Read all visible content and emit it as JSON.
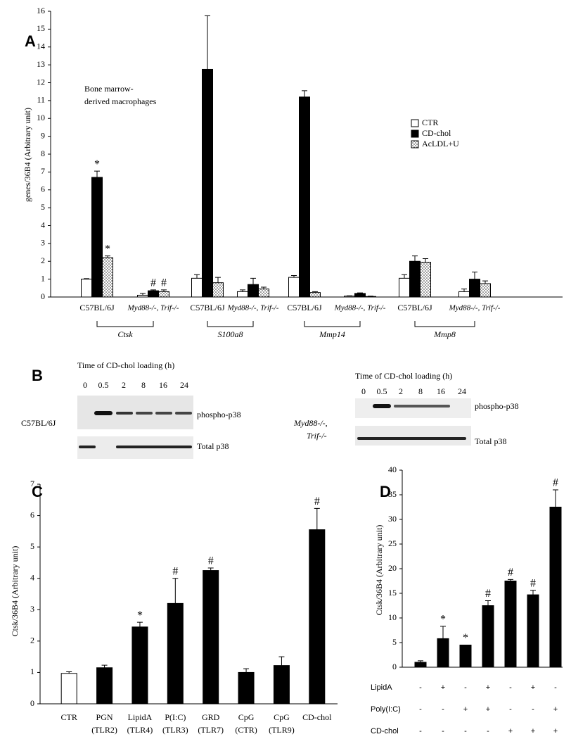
{
  "chart_data": [
    {
      "type": "bar",
      "panel_label": "A",
      "y_label": "genes/36B4 (Arbitrary unit)",
      "annotation": [
        "Bone marrow-",
        "derived macrophages"
      ],
      "categories": [
        "C57BL/6J",
        "Myd88-/-, Trif-/-",
        "C57BL/6J",
        "Myd88-/-, Trif-/-",
        "C57BL/6J",
        "Myd88-/-, Trif-/-",
        "C57BL/6J",
        "Myd88-/-, Trif-/-"
      ],
      "groups": [
        "Ctsk",
        "S100a8",
        "Mmp14",
        "Mmp8"
      ],
      "series": [
        {
          "name": "CTR",
          "color": "#ffffff",
          "values": [
            1.0,
            0.1,
            1.05,
            0.3,
            1.1,
            0.05,
            1.05,
            0.3
          ],
          "errors": [
            0.03,
            0.1,
            0.2,
            0.1,
            0.1,
            0.02,
            0.2,
            0.15
          ],
          "markers": [
            null,
            null,
            null,
            null,
            null,
            null,
            null,
            null
          ]
        },
        {
          "name": "CD-chol",
          "color": "#000000",
          "values": [
            6.7,
            0.35,
            12.75,
            0.7,
            11.2,
            0.2,
            2.0,
            1.0
          ],
          "errors": [
            0.35,
            0.05,
            3.0,
            0.35,
            0.35,
            0.03,
            0.3,
            0.4
          ],
          "markers": [
            "*",
            "#",
            null,
            null,
            null,
            null,
            null,
            null
          ]
        },
        {
          "name": "AcLDL+U",
          "color": "dots",
          "values": [
            2.2,
            0.3,
            0.8,
            0.45,
            0.25,
            0.03,
            1.95,
            0.75
          ],
          "errors": [
            0.1,
            0.1,
            0.3,
            0.1,
            0.05,
            0.02,
            0.2,
            0.15
          ],
          "markers": [
            "*",
            "#",
            null,
            null,
            null,
            null,
            null,
            null
          ]
        }
      ],
      "ylim": [
        0,
        16
      ],
      "yticks": [
        0,
        1,
        2,
        3,
        4,
        5,
        6,
        7,
        8,
        9,
        10,
        11,
        12,
        13,
        14,
        15,
        16
      ]
    },
    {
      "type": "bar",
      "panel_label": "C",
      "y_label": "Ctsk/36B4 (Arbitrary unit)",
      "categories": [
        "CTR",
        "PGN",
        "LipidA",
        "P(I:C)",
        "GRD",
        "CpG",
        "CpG",
        "CD-chol"
      ],
      "category_notes": [
        null,
        "(TLR2)",
        "(TLR4)",
        "(TLR3)",
        "(TLR7)",
        "(CTR)",
        "(TLR9)",
        null
      ],
      "colors": [
        "#ffffff",
        "#000000",
        "#000000",
        "#000000",
        "#000000",
        "#000000",
        "#000000",
        "#000000"
      ],
      "values": [
        0.97,
        1.15,
        2.45,
        3.2,
        4.25,
        1.0,
        1.22,
        5.55
      ],
      "errors": [
        0.05,
        0.08,
        0.15,
        0.8,
        0.08,
        0.12,
        0.28,
        0.68
      ],
      "markers": [
        null,
        null,
        "*",
        "#",
        "#",
        null,
        null,
        "#"
      ],
      "ylim": [
        0,
        7
      ],
      "yticks": [
        0,
        1,
        2,
        3,
        4,
        5,
        6,
        7
      ]
    },
    {
      "type": "bar",
      "panel_label": "D",
      "y_label": "Ctsk/36B4 (Arbitrary unit)",
      "color": "#000000",
      "values": [
        1.0,
        5.8,
        4.5,
        12.5,
        17.5,
        14.7,
        32.5
      ],
      "errors": [
        0.3,
        2.5,
        0.0,
        1.0,
        0.3,
        0.9,
        3.5
      ],
      "markers": [
        null,
        "*",
        "*",
        "#",
        "#",
        "#",
        "#"
      ],
      "treatments": [
        {
          "name": "LipidA",
          "signs": [
            "-",
            "+",
            "-",
            "+",
            "-",
            "+",
            "-"
          ]
        },
        {
          "name": "Poly(I:C)",
          "signs": [
            "-",
            "-",
            "+",
            "+",
            "-",
            "-",
            "+"
          ]
        },
        {
          "name": "CD-chol",
          "signs": [
            "-",
            "-",
            "-",
            "-",
            "+",
            "+",
            "+"
          ]
        }
      ],
      "ylim": [
        0,
        40
      ],
      "yticks": [
        0,
        5,
        10,
        15,
        20,
        25,
        30,
        35,
        40
      ]
    }
  ],
  "blot": {
    "panel_label": "B",
    "left": {
      "title": "Time of CD-chol loading (h)",
      "times": [
        0,
        0.5,
        2,
        8,
        16,
        24
      ],
      "bands": [
        "phospho-p38",
        "Total p38"
      ],
      "strain": [
        "C57BL/6J"
      ]
    },
    "right": {
      "title": "Time of CD-chol loading (h)",
      "times": [
        0,
        0.5,
        2,
        8,
        16,
        24
      ],
      "bands": [
        "phospho-p38",
        "Total p38"
      ],
      "strain": [
        "Myd88-/-,",
        "Trif-/-"
      ]
    }
  }
}
